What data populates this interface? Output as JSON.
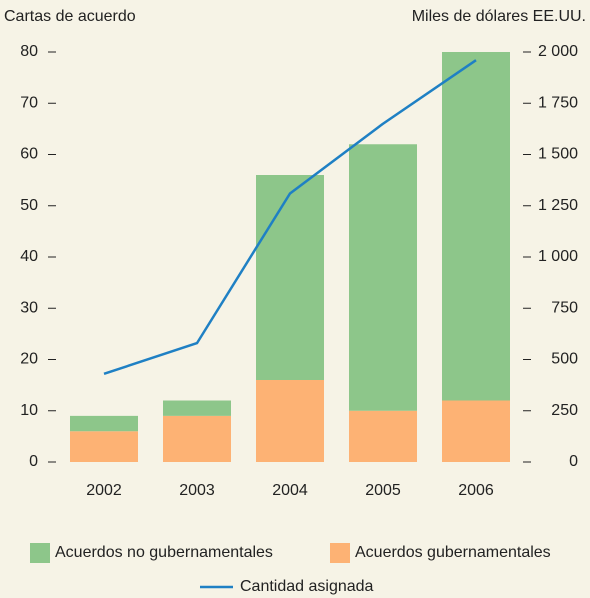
{
  "chart_data": {
    "type": "bar",
    "stacked": true,
    "y_axis_label": "Cartas de acuerdo",
    "y2_axis_label": "Miles de dólares EE.UU.",
    "categories": [
      "2002",
      "2003",
      "2004",
      "2005",
      "2006"
    ],
    "series": [
      {
        "name": "Acuerdos gubernamentales",
        "color": "#fdb274",
        "type": "bar",
        "values": [
          6,
          9,
          16,
          10,
          12
        ]
      },
      {
        "name": "Acuerdos no gubernamentales",
        "color": "#8dc68a",
        "type": "bar",
        "values": [
          3,
          3,
          40,
          52,
          68
        ]
      },
      {
        "name": "Cantidad asignada",
        "color": "#1f80c4",
        "type": "line",
        "axis": "y2",
        "values": [
          430,
          580,
          1310,
          1650,
          1960
        ]
      }
    ],
    "ylim": [
      0,
      80
    ],
    "yticks": [
      0,
      10,
      20,
      30,
      40,
      50,
      60,
      70,
      80
    ],
    "y2lim": [
      0,
      2000
    ],
    "y2ticks": [
      0,
      250,
      500,
      750,
      {
        "value": 1000,
        "label": "1 000"
      },
      {
        "value": 1250,
        "label": "1 250"
      },
      {
        "value": 1500,
        "label": "1 500"
      },
      {
        "value": 1750,
        "label": "1 750"
      },
      {
        "value": 2000,
        "label": "2 000"
      }
    ],
    "grid": false
  }
}
